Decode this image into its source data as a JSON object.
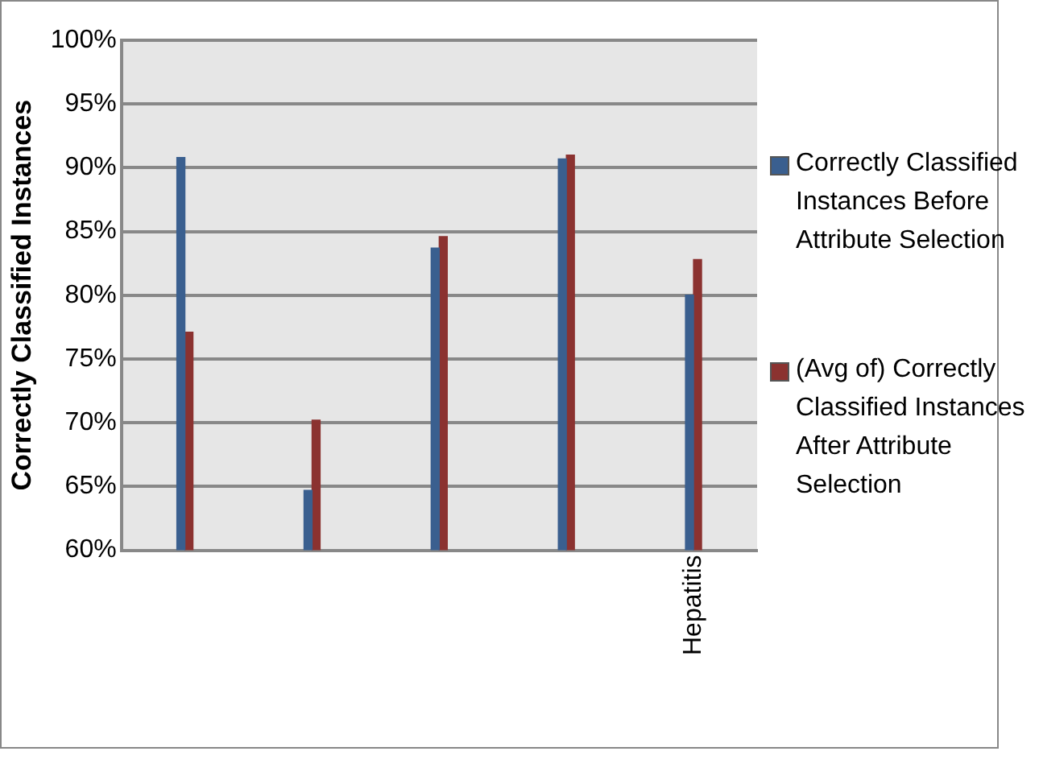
{
  "chart_data": {
    "type": "bar",
    "ylabel": "Correctly Classified Instances",
    "categories": [
      null,
      null,
      null,
      null,
      "Hepatitis"
    ],
    "series": [
      {
        "name": "Correctly Classified Instances Before Attribute Selection",
        "color": "#3a5f8f",
        "values": [
          90.8,
          64.7,
          83.7,
          90.7,
          80.0
        ]
      },
      {
        "name": "(Avg of) Correctly Classified Instances After Attribute Selection",
        "color": "#8b3230",
        "values": [
          77.1,
          70.2,
          84.6,
          91.0,
          82.8
        ]
      }
    ],
    "ylim": [
      60,
      100
    ],
    "yticks": [
      {
        "value": 60,
        "label": "60%"
      },
      {
        "value": 65,
        "label": "65%"
      },
      {
        "value": 70,
        "label": "70%"
      },
      {
        "value": 75,
        "label": "75%"
      },
      {
        "value": 80,
        "label": "80%"
      },
      {
        "value": 85,
        "label": "85%"
      },
      {
        "value": 90,
        "label": "90%"
      },
      {
        "value": 95,
        "label": "95%"
      },
      {
        "value": 100,
        "label": "100%"
      }
    ],
    "grid": "y",
    "legend": "right"
  }
}
